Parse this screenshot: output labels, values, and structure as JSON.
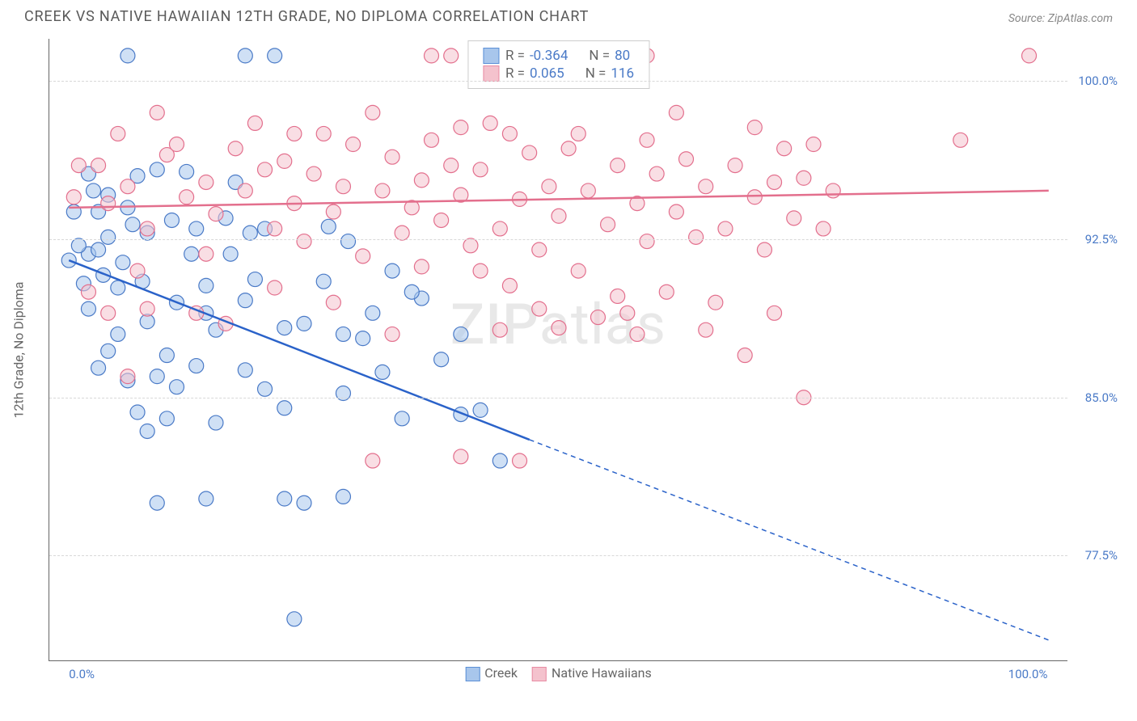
{
  "header": {
    "title": "CREEK VS NATIVE HAWAIIAN 12TH GRADE, NO DIPLOMA CORRELATION CHART",
    "source": "Source: ZipAtlas.com"
  },
  "watermark": {
    "zip": "ZIP",
    "atlas": "atlas"
  },
  "axes": {
    "y_label": "12th Grade, No Diploma",
    "y_min": 72.5,
    "y_max": 102.0,
    "y_ticks": [
      77.5,
      85.0,
      92.5,
      100.0
    ],
    "y_tick_labels": [
      "77.5%",
      "85.0%",
      "92.5%",
      "100.0%"
    ],
    "x_min": -2,
    "x_max": 102,
    "x_ticks": [
      0.0,
      100.0
    ],
    "x_tick_labels": [
      "0.0%",
      "100.0%"
    ],
    "y_tick_color": "#4a7ac7",
    "x_tick_color": "#4a7ac7",
    "grid_color": "#d8d8d8"
  },
  "legend_series": [
    {
      "label": "Creek",
      "fill": "#a8c6ec",
      "stroke": "#5b8fd6"
    },
    {
      "label": "Native Hawaiians",
      "fill": "#f4c2cd",
      "stroke": "#e88ba3"
    }
  ],
  "stats_legend": [
    {
      "swatch_fill": "#a8c6ec",
      "swatch_stroke": "#5b8fd6",
      "r_label": "R =",
      "r_value": "-0.364",
      "n_label": "N =",
      "n_value": "80"
    },
    {
      "swatch_fill": "#f4c2cd",
      "swatch_stroke": "#e88ba3",
      "r_label": "R =",
      "r_value": "0.065",
      "n_label": "N =",
      "n_value": "116"
    }
  ],
  "trend_lines": [
    {
      "color": "#2a62c9",
      "width": 2.5,
      "x1": 0,
      "y1": 91.5,
      "x2": 47,
      "y2": 83.0,
      "dashed_x2": 100,
      "dashed_y2": 73.5
    },
    {
      "color": "#e36f8d",
      "width": 2.5,
      "x1": 0,
      "y1": 94.0,
      "x2": 100,
      "y2": 94.8,
      "dashed_x2": 100,
      "dashed_y2": 94.8
    }
  ],
  "marker": {
    "radius": 9,
    "fill_opacity": 0.55,
    "stroke_width": 1.2
  },
  "series": [
    {
      "name": "Creek",
      "fill": "#a8c6ec",
      "stroke": "#4a7ac7",
      "points": [
        [
          6,
          101.2
        ],
        [
          18,
          101.2
        ],
        [
          21,
          101.2
        ],
        [
          0,
          91.5
        ],
        [
          2,
          91.8
        ],
        [
          3,
          93.8
        ],
        [
          4,
          92.6
        ],
        [
          3,
          92.0
        ],
        [
          5,
          90.2
        ],
        [
          6,
          94.0
        ],
        [
          7,
          95.5
        ],
        [
          8,
          92.8
        ],
        [
          9,
          95.8
        ],
        [
          11,
          89.5
        ],
        [
          12,
          95.7
        ],
        [
          13,
          93.0
        ],
        [
          10,
          87.0
        ],
        [
          8,
          88.6
        ],
        [
          5,
          88.0
        ],
        [
          4,
          87.2
        ],
        [
          14,
          90.3
        ],
        [
          15,
          88.2
        ],
        [
          16,
          93.5
        ],
        [
          17,
          95.2
        ],
        [
          18,
          89.6
        ],
        [
          19,
          90.6
        ],
        [
          20,
          93.0
        ],
        [
          22,
          88.3
        ],
        [
          6,
          85.8
        ],
        [
          7,
          84.3
        ],
        [
          9,
          86.0
        ],
        [
          3,
          86.4
        ],
        [
          11,
          85.5
        ],
        [
          13,
          86.5
        ],
        [
          15,
          83.8
        ],
        [
          8,
          83.4
        ],
        [
          18,
          86.3
        ],
        [
          20,
          85.4
        ],
        [
          22,
          84.5
        ],
        [
          24,
          88.5
        ],
        [
          26,
          90.5
        ],
        [
          28,
          88.0
        ],
        [
          30,
          87.8
        ],
        [
          32,
          86.2
        ],
        [
          33,
          91.0
        ],
        [
          34,
          84.0
        ],
        [
          36,
          89.7
        ],
        [
          38,
          86.8
        ],
        [
          40,
          84.2
        ],
        [
          42,
          84.4
        ],
        [
          44,
          82.0
        ],
        [
          40,
          88.0
        ],
        [
          28,
          85.2
        ],
        [
          9,
          80.0
        ],
        [
          14,
          80.2
        ],
        [
          22,
          80.2
        ],
        [
          24,
          80.0
        ],
        [
          28,
          80.3
        ],
        [
          23,
          74.5
        ],
        [
          0.5,
          93.8
        ],
        [
          1,
          92.2
        ],
        [
          2,
          89.2
        ],
        [
          4,
          94.6
        ],
        [
          1.5,
          90.4
        ],
        [
          2.5,
          94.8
        ],
        [
          6.5,
          93.2
        ],
        [
          7.5,
          90.5
        ],
        [
          3.5,
          90.8
        ],
        [
          5.5,
          91.4
        ],
        [
          12.5,
          91.8
        ],
        [
          10.5,
          93.4
        ],
        [
          16.5,
          91.8
        ],
        [
          18.5,
          92.8
        ],
        [
          26.5,
          93.1
        ],
        [
          31,
          89.0
        ],
        [
          35,
          90.0
        ],
        [
          28.5,
          92.4
        ],
        [
          10,
          84.0
        ],
        [
          14,
          89.0
        ],
        [
          2,
          95.6
        ]
      ]
    },
    {
      "name": "Native Hawaiians",
      "fill": "#f4c2cd",
      "stroke": "#e36f8d",
      "points": [
        [
          37,
          101.2
        ],
        [
          39,
          101.2
        ],
        [
          48,
          101.2
        ],
        [
          51,
          101.2
        ],
        [
          54,
          101.2
        ],
        [
          58,
          101.2
        ],
        [
          98,
          101.2
        ],
        [
          91,
          97.2
        ],
        [
          3,
          96.0
        ],
        [
          6,
          95.0
        ],
        [
          8,
          93.0
        ],
        [
          4,
          94.2
        ],
        [
          10,
          96.5
        ],
        [
          12,
          94.5
        ],
        [
          14,
          95.2
        ],
        [
          15,
          93.7
        ],
        [
          17,
          96.8
        ],
        [
          18,
          94.8
        ],
        [
          20,
          95.8
        ],
        [
          21,
          93.0
        ],
        [
          22,
          96.2
        ],
        [
          23,
          94.2
        ],
        [
          24,
          92.4
        ],
        [
          25,
          95.6
        ],
        [
          26,
          97.5
        ],
        [
          27,
          93.8
        ],
        [
          28,
          95.0
        ],
        [
          29,
          97.0
        ],
        [
          30,
          91.7
        ],
        [
          31,
          98.5
        ],
        [
          32,
          94.8
        ],
        [
          33,
          96.4
        ],
        [
          34,
          92.8
        ],
        [
          35,
          94.0
        ],
        [
          36,
          95.3
        ],
        [
          37,
          97.2
        ],
        [
          38,
          93.4
        ],
        [
          39,
          96.0
        ],
        [
          40,
          94.6
        ],
        [
          41,
          92.2
        ],
        [
          42,
          95.8
        ],
        [
          43,
          98.0
        ],
        [
          44,
          93.0
        ],
        [
          45,
          90.3
        ],
        [
          46,
          94.4
        ],
        [
          47,
          96.6
        ],
        [
          48,
          92.0
        ],
        [
          49,
          95.0
        ],
        [
          50,
          93.6
        ],
        [
          51,
          96.8
        ],
        [
          52,
          91.0
        ],
        [
          53,
          94.8
        ],
        [
          54,
          88.8
        ],
        [
          55,
          93.2
        ],
        [
          56,
          96.0
        ],
        [
          57,
          89.0
        ],
        [
          58,
          94.2
        ],
        [
          59,
          92.4
        ],
        [
          60,
          95.6
        ],
        [
          61,
          90.0
        ],
        [
          62,
          93.8
        ],
        [
          63,
          96.3
        ],
        [
          64,
          92.6
        ],
        [
          65,
          95.0
        ],
        [
          66,
          89.5
        ],
        [
          67,
          93.0
        ],
        [
          68,
          96.0
        ],
        [
          69,
          87.0
        ],
        [
          70,
          94.5
        ],
        [
          71,
          92.0
        ],
        [
          72,
          95.2
        ],
        [
          73,
          96.8
        ],
        [
          74,
          93.5
        ],
        [
          75,
          95.4
        ],
        [
          76,
          97.0
        ],
        [
          77,
          93.0
        ],
        [
          78,
          94.8
        ],
        [
          59,
          101.2
        ],
        [
          42,
          91.0
        ],
        [
          36,
          91.2
        ],
        [
          14,
          91.8
        ],
        [
          11,
          97.0
        ],
        [
          27,
          89.5
        ],
        [
          33,
          88.0
        ],
        [
          48,
          89.2
        ],
        [
          56,
          101.2
        ],
        [
          9,
          98.5
        ],
        [
          19,
          98.0
        ],
        [
          23,
          97.5
        ],
        [
          40,
          97.8
        ],
        [
          45,
          97.5
        ],
        [
          52,
          97.5
        ],
        [
          62,
          98.5
        ],
        [
          70,
          97.8
        ],
        [
          59,
          97.2
        ],
        [
          50,
          88.3
        ],
        [
          56,
          89.8
        ],
        [
          72,
          89.0
        ],
        [
          75,
          85.0
        ],
        [
          65,
          88.2
        ],
        [
          46,
          82.0
        ],
        [
          40,
          82.2
        ],
        [
          31,
          82.0
        ],
        [
          44,
          88.2
        ],
        [
          58,
          88.0
        ],
        [
          8,
          89.2
        ],
        [
          6,
          86.0
        ],
        [
          16,
          88.5
        ],
        [
          21,
          90.2
        ],
        [
          2,
          90.0
        ],
        [
          13,
          89.0
        ],
        [
          0.5,
          94.5
        ],
        [
          1,
          96.0
        ],
        [
          5,
          97.5
        ],
        [
          7,
          91.0
        ],
        [
          4,
          89.0
        ]
      ]
    }
  ]
}
